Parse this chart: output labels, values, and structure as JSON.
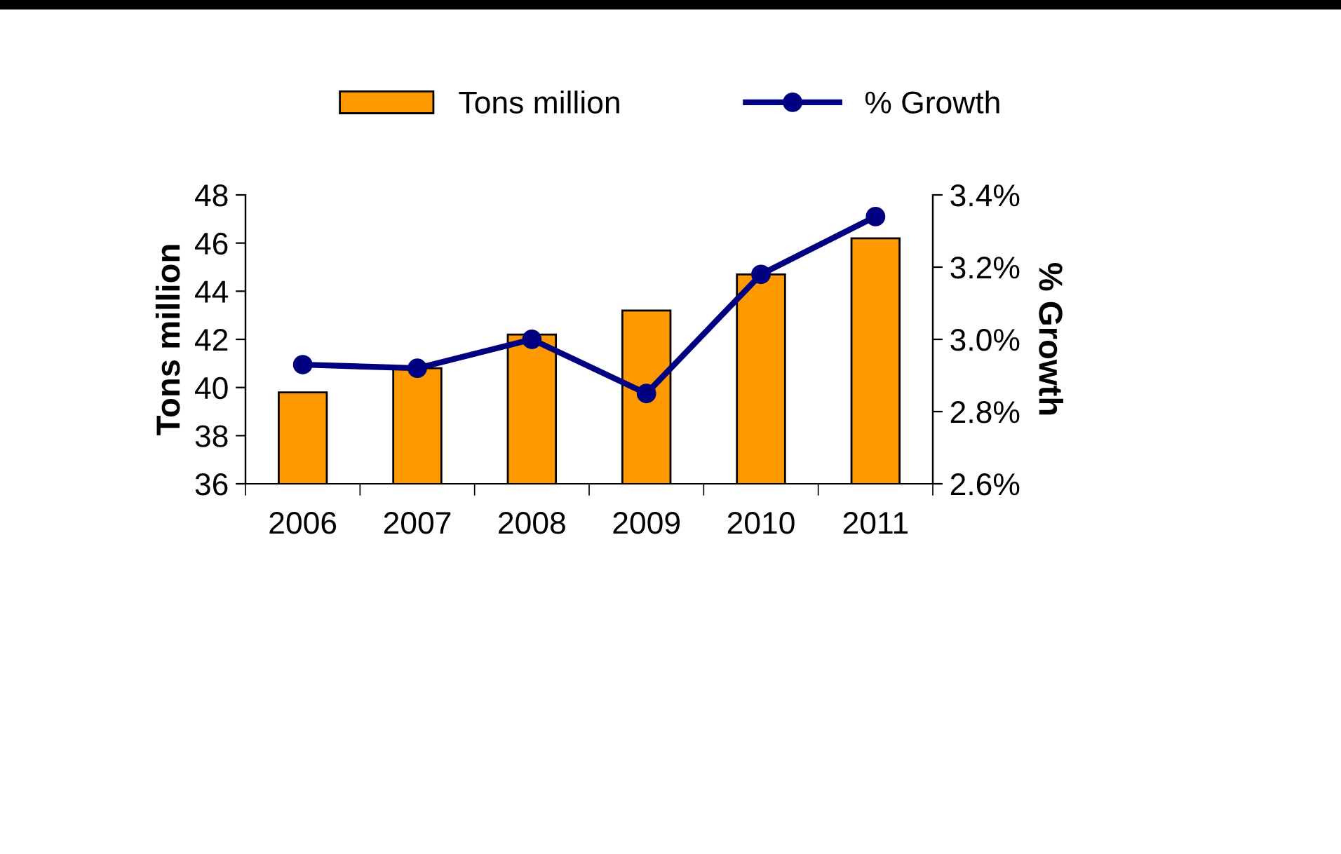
{
  "chart_data": {
    "type": "bar",
    "categories": [
      "2006",
      "2007",
      "2008",
      "2009",
      "2010",
      "2011"
    ],
    "ylabel": "Tons million",
    "y2label": "% Growth",
    "series": [
      {
        "name": "Tons million",
        "color": "#ff9900",
        "values": [
          39.8,
          40.8,
          42.2,
          43.2,
          44.7,
          46.2
        ]
      },
      {
        "name": "% Growth",
        "type": "line",
        "axis": "y2",
        "color": "#000080",
        "marker": "circle",
        "values": [
          2.93,
          2.92,
          3.0,
          2.85,
          3.18,
          3.34
        ]
      }
    ],
    "ylim": [
      36,
      48
    ],
    "yticks": [
      36,
      38,
      40,
      42,
      44,
      46,
      48
    ],
    "y2lim": [
      2.6,
      3.4
    ],
    "y2ticks": [
      {
        "value": 2.6,
        "label": "2.6%"
      },
      {
        "value": 2.8,
        "label": "2.8%"
      },
      {
        "value": 3.0,
        "label": "3.0%"
      },
      {
        "value": 3.2,
        "label": "3.2%"
      },
      {
        "value": 3.4,
        "label": "3.4%"
      }
    ],
    "grid": false,
    "legend": "top"
  }
}
